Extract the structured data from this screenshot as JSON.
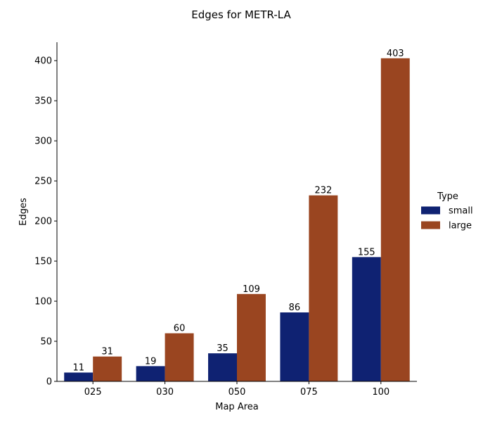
{
  "chart_data": {
    "type": "bar",
    "title": "Edges for METR-LA",
    "xlabel": "Map Area",
    "ylabel": "Edges",
    "categories": [
      "025",
      "030",
      "050",
      "075",
      "100"
    ],
    "series": [
      {
        "name": "small",
        "values": [
          11,
          19,
          35,
          86,
          155
        ],
        "color": "#0f2272"
      },
      {
        "name": "large",
        "values": [
          31,
          60,
          109,
          232,
          403
        ],
        "color": "#9a4520"
      }
    ],
    "ylim": [
      0,
      423
    ],
    "yticks": [
      0,
      50,
      100,
      150,
      200,
      250,
      300,
      350,
      400
    ],
    "legend": {
      "title": "Type",
      "placement": "right"
    },
    "grid": false
  }
}
